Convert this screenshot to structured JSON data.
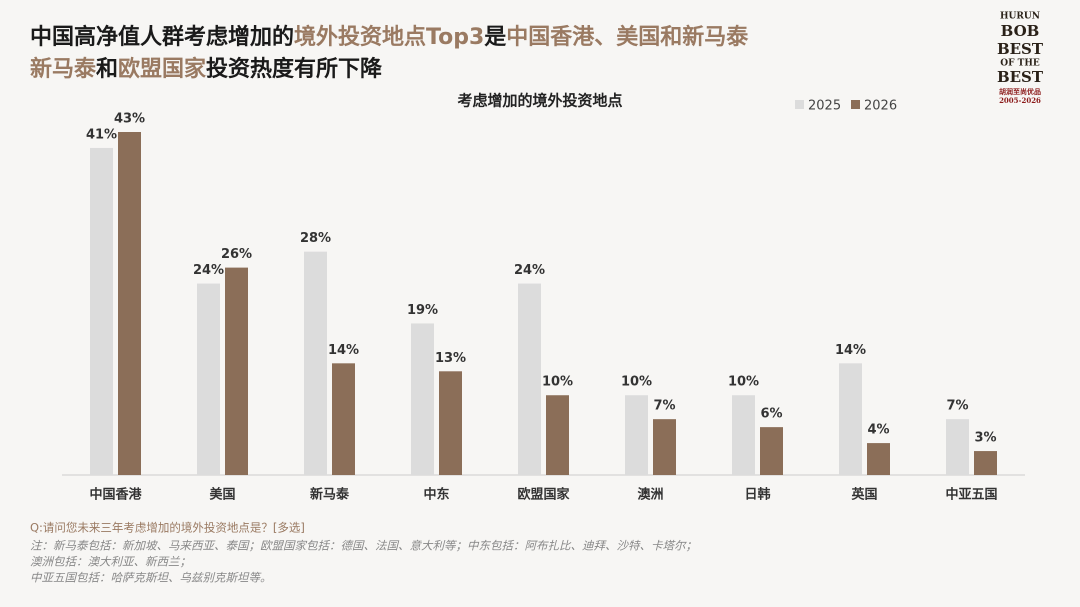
{
  "header": {
    "title": [
      [
        {
          "text": "中国高净值人群考虑增加的",
          "highlight": false
        },
        {
          "text": "境外投资地点Top3",
          "highlight": true
        },
        {
          "text": "是",
          "highlight": false
        },
        {
          "text": "中国香港、美国和新马泰",
          "highlight": true
        }
      ],
      [
        {
          "text": "新马泰",
          "highlight": true
        },
        {
          "text": "和",
          "highlight": false
        },
        {
          "text": "欧盟国家",
          "highlight": true
        },
        {
          "text": "投资热度有所下降",
          "highlight": false
        }
      ]
    ],
    "highlight_color": "#9a7a62",
    "text_color": "#1a1a1a"
  },
  "logo": {
    "lines": [
      "HURUN",
      "BOB",
      "BEST",
      "OF THE",
      "BEST",
      "胡润至尚优品",
      "2005-2026"
    ]
  },
  "chart_data": {
    "type": "bar",
    "title": "考虑增加的境外投资地点",
    "categories": [
      "中国香港",
      "美国",
      "新马泰",
      "中东",
      "欧盟国家",
      "澳洲",
      "日韩",
      "英国",
      "中亚五国"
    ],
    "series": [
      {
        "name": "2025",
        "color": "#dcdcdc",
        "values": [
          41,
          24,
          28,
          19,
          24,
          10,
          10,
          14,
          7
        ],
        "value_labels": [
          "41%",
          "24%",
          "28%",
          "19%",
          "24%",
          "10%",
          "10%",
          "14%",
          "7%"
        ]
      },
      {
        "name": "2026",
        "color": "#8b6e58",
        "values": [
          43,
          26,
          14,
          13,
          10,
          7,
          6,
          4,
          3
        ],
        "value_labels": [
          "43%",
          "26%",
          "14%",
          "13%",
          "10%",
          "7%",
          "6%",
          "4%",
          "3%"
        ]
      }
    ],
    "legend": "top-right",
    "grid": false
  },
  "footnotes": {
    "question": "Q:请问您未来三年考虑增加的境外投资地点是？[多选]",
    "notes": [
      "注：新马泰包括：新加坡、马来西亚、泰国；欧盟国家包括：德国、法国、意大利等；中东包括：阿布扎比、迪拜、沙特、卡塔尔；",
      "澳洲包括：澳大利亚、新西兰；",
      "中亚五国包括：哈萨克斯坦、乌兹别克斯坦等。"
    ]
  }
}
